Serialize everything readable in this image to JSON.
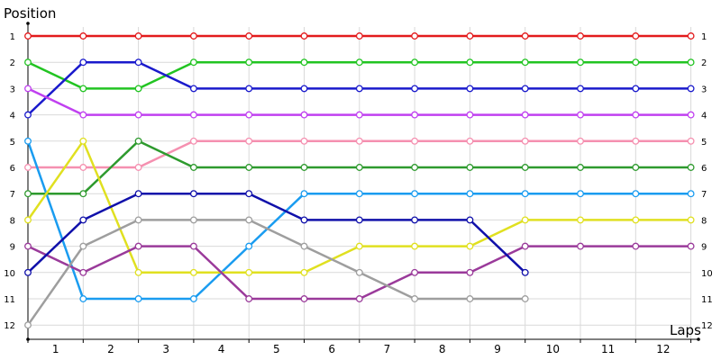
{
  "chart_data": {
    "type": "line",
    "ylabel": "Position",
    "xlabel": "Laps",
    "x_categories": [
      "1",
      "2",
      "3",
      "4",
      "5",
      "6",
      "7",
      "8",
      "9",
      "10",
      "11",
      "12"
    ],
    "y_ticks": [
      1,
      2,
      3,
      4,
      5,
      6,
      7,
      8,
      9,
      10,
      11,
      12
    ],
    "ylim": [
      1,
      12
    ],
    "y_inverted": true,
    "grid": true,
    "legend": "none",
    "marker": "hollow-circle",
    "x_points": [
      0,
      1,
      2,
      3,
      4,
      5,
      6,
      7,
      8,
      9,
      10,
      11,
      12
    ],
    "series": [
      {
        "color": "#e31a1c",
        "values": [
          1,
          1,
          1,
          1,
          1,
          1,
          1,
          1,
          1,
          1,
          1,
          1,
          1
        ]
      },
      {
        "color": "#22c422",
        "values": [
          2,
          3,
          3,
          2,
          2,
          2,
          2,
          2,
          2,
          2,
          2,
          2,
          2
        ]
      },
      {
        "color": "#1a1acc",
        "values": [
          4,
          2,
          2,
          3,
          3,
          3,
          3,
          3,
          3,
          3,
          3,
          3,
          3
        ]
      },
      {
        "color": "#c040f0",
        "values": [
          3,
          4,
          4,
          4,
          4,
          4,
          4,
          4,
          4,
          4,
          4,
          4,
          4
        ]
      },
      {
        "color": "#f590b0",
        "values": [
          6,
          6,
          6,
          5,
          5,
          5,
          5,
          5,
          5,
          5,
          5,
          5,
          5
        ]
      },
      {
        "color": "#2e9a2e",
        "values": [
          7,
          7,
          5,
          6,
          6,
          6,
          6,
          6,
          6,
          6,
          6,
          6,
          6
        ]
      },
      {
        "color": "#1a9cf0",
        "values": [
          5,
          11,
          11,
          11,
          9,
          7,
          7,
          7,
          7,
          7,
          7,
          7,
          7
        ]
      },
      {
        "color": "#e0e020",
        "values": [
          8,
          5,
          10,
          10,
          10,
          10,
          9,
          9,
          9,
          8,
          8,
          8,
          8
        ]
      },
      {
        "color": "#9a3a9a",
        "values": [
          9,
          10,
          9,
          9,
          11,
          11,
          11,
          10,
          10,
          9,
          9,
          9,
          9
        ]
      },
      {
        "color": "#1010aa",
        "values": [
          10,
          8,
          7,
          7,
          7,
          8,
          8,
          8,
          8,
          10
        ]
      },
      {
        "color": "#9e9e9e",
        "values": [
          12,
          9,
          8,
          8,
          8,
          9,
          10,
          11,
          11,
          11
        ]
      }
    ]
  }
}
